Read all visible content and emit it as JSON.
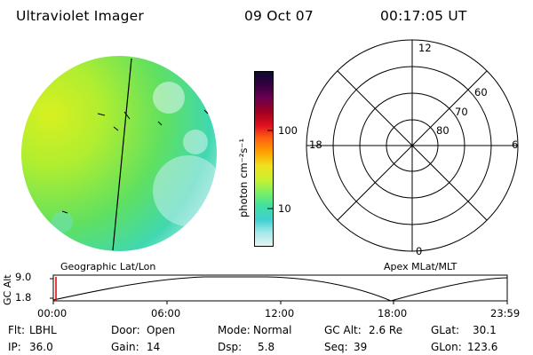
{
  "header": {
    "title": "Ultraviolet Imager",
    "date": "09 Oct 07",
    "time": "00:17:05 UT"
  },
  "left_panel": {
    "label": "Geographic Lat/Lon"
  },
  "colorbar": {
    "unit": "photon cm⁻²s⁻¹",
    "tick_labels": [
      "100",
      "10"
    ],
    "colors": [
      "#0a0a30",
      "#3a0040",
      "#6a0050",
      "#a00020",
      "#e01020",
      "#ff6010",
      "#ffa000",
      "#f0e020",
      "#c8f030",
      "#80f060",
      "#40e0a0",
      "#40d0d0",
      "#a0e8e8",
      "#e8f4f4"
    ]
  },
  "polar_plot": {
    "label": "Apex MLat/MLT",
    "mlt_labels": {
      "top": "12",
      "left": "18",
      "right": "6",
      "bottom": "0"
    },
    "lat_labels": [
      "60",
      "70",
      "80"
    ]
  },
  "timeline": {
    "axis_label": "GC Alt",
    "y_ticks": [
      "9.0",
      "1.8"
    ],
    "x_ticks": [
      "00:00",
      "06:00",
      "12:00",
      "18:00",
      "23:59"
    ]
  },
  "info": {
    "flt_label": "Flt:",
    "flt_value": "LBHL",
    "ip_label": "IP:",
    "ip_value": "36.0",
    "door_label": "Door:",
    "door_value": "Open",
    "gain_label": "Gain:",
    "gain_value": "14",
    "mode_label": "Mode:",
    "mode_value": "Normal",
    "dsp_label": "Dsp:",
    "dsp_value": "5.8",
    "gcalt_label": "GC Alt:",
    "gcalt_value": "2.6 Re",
    "seq_label": "Seq:",
    "seq_value": "39",
    "glat_label": "GLat:",
    "glat_value": "30.1",
    "glon_label": "GLon:",
    "glon_value": "123.6"
  }
}
